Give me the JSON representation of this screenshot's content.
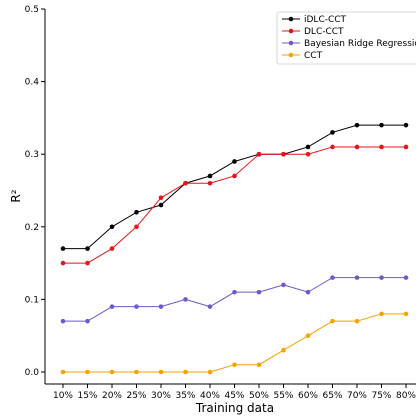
{
  "chart_data": {
    "type": "line",
    "xlabel": "Training data",
    "ylabel": "R²",
    "ylim": [
      0,
      0.5
    ],
    "yticks": [
      "0.0",
      "0.1",
      "0.2",
      "0.3",
      "0.4",
      "0.5"
    ],
    "categories": [
      "10%",
      "15%",
      "20%",
      "25%",
      "30%",
      "35%",
      "40%",
      "45%",
      "50%",
      "55%",
      "60%",
      "65%",
      "70%",
      "75%",
      "80%"
    ],
    "legend_position": "top-right",
    "grid": false,
    "series": [
      {
        "name": "iDLC-CCT",
        "color": "#000000",
        "values": [
          0.17,
          0.17,
          0.2,
          0.22,
          0.23,
          0.26,
          0.27,
          0.29,
          0.3,
          0.3,
          0.31,
          0.33,
          0.34,
          0.34,
          0.34
        ]
      },
      {
        "name": "DLC-CCT",
        "color": "#e8141a",
        "values": [
          0.15,
          0.15,
          0.17,
          0.2,
          0.24,
          0.26,
          0.26,
          0.27,
          0.3,
          0.3,
          0.3,
          0.31,
          0.31,
          0.31,
          0.31
        ]
      },
      {
        "name": "Bayesian Ridge Regression",
        "color": "#6a5acd",
        "values": [
          0.07,
          0.07,
          0.09,
          0.09,
          0.09,
          0.1,
          0.09,
          0.11,
          0.11,
          0.12,
          0.11,
          0.13,
          0.13,
          0.13,
          0.13
        ]
      },
      {
        "name": "CCT",
        "color": "#f5a300",
        "values": [
          0.0,
          0.0,
          0.0,
          0.0,
          0.0,
          0.0,
          0.0,
          0.01,
          0.01,
          0.03,
          0.05,
          0.07,
          0.07,
          0.08,
          0.08
        ]
      }
    ]
  }
}
